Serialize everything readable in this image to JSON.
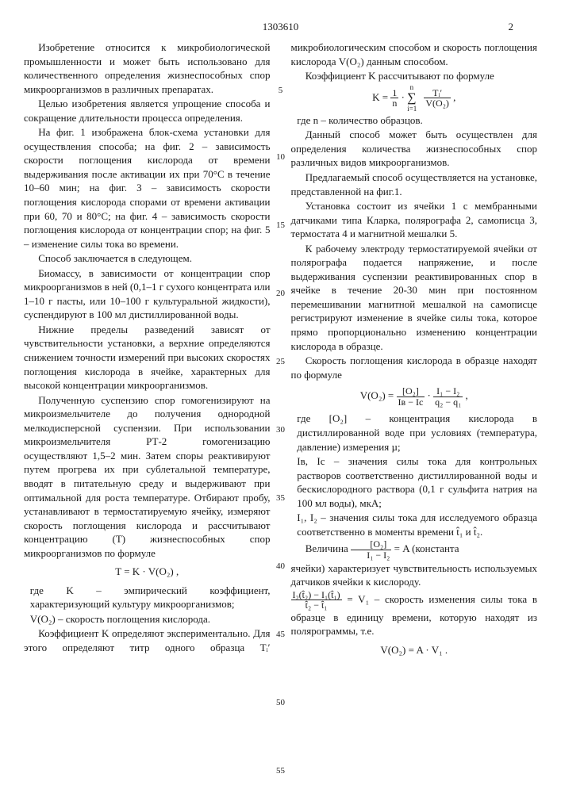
{
  "header": {
    "patent_number": "1303610",
    "page_number": "2"
  },
  "line_numbers": [
    "5",
    "10",
    "15",
    "20",
    "25",
    "30",
    "35",
    "40",
    "45",
    "50",
    "55"
  ],
  "line_number_tops": [
    58,
    142,
    228,
    314,
    400,
    486,
    572,
    658,
    744,
    830,
    916
  ],
  "left": {
    "p1": "Изобретение относится к микробиологической промышленности и может быть использовано для количественного определения жизнеспособных спор микроорганизмов в различных препаратах.",
    "p2": "Целью изобретения является упрощение способа и сокращение длительности процесса определения.",
    "p3": "На фиг. 1 изображена блок-схема установки для осуществления способа; на фиг. 2 – зависимость скорости поглощения кислорода от времени выдерживания после активации их при 70°С в течение 10–60 мин; на фиг. 3 – зависимость скорости поглощения кислорода спорами от времени активации при 60, 70 и 80°С; на фиг. 4 – зависимость скорости поглощения кислорода от концентрации спор; на фиг. 5 – изменение силы тока во времени.",
    "p4": "Способ заключается в следующем.",
    "p5": "Биомассу, в зависимости от концентрации спор микроорганизмов в ней (0,1–1 г сухого концентрата или 1–10 г пасты, или 10–100 г культуральной жидкости), суспендируют в 100 мл дистиллированной воды.",
    "p6": "Нижние пределы разведений зависят от чувствительности установки, а верхние определяются снижением точности измерений при высоких скоростях поглощения кислорода в ячейке, характерных для высокой концентрации микроорганизмов.",
    "p7": "Полученную суспензию спор гомогенизируют на микроизмельчителе до получения однородной мелкодисперсной суспензии. При использовании микроизмельчителя РТ-2 гомогенизацию осуществляют 1,5–2 мин. Затем споры реактивируют путем прогрева их при сублетальной температуре, вводят в питательную среду и выдерживают при оптимальной для роста температуре. Отбирают пробу, устанавливают в термостатируемую ячейку, измеряют скорость поглощения кислорода и рассчитывают концентрацию (T) жизнеспособных спор микроорганизмов по формуле",
    "f1": "T = K · V(O₂) ,",
    "w1a": "где K – эмпирический коэффициент, характеризующий культуру микроорганизмов;",
    "w1b": "V(O₂) – скорость поглощения кислорода."
  },
  "right": {
    "p1": "Коэффициент K определяют экспериментально. Для этого определяют титр одного образца Tᵢ′ микробиологическим способом и скорость поглощения кислорода V(O₂) данным способом.",
    "p2": "Коэффициент K рассчитывают по формуле",
    "f1_left": "K = ",
    "f1_frac1_num": "1",
    "f1_frac1_den": "n",
    "f1_mid": " · ",
    "f1_sum": "∑",
    "f1_sum_top": "n",
    "f1_sum_bot": "i=1",
    "f1_frac2_num": "Tᵢ′",
    "f1_frac2_den": "V(O₂)",
    "f1_tail": " ,",
    "p3": "где n – количество образцов.",
    "p4": "Данный способ может быть осуществлен для определения количества жизнеспособных спор различных видов микроорганизмов.",
    "p5": "Предлагаемый способ осуществляется на установке, представленной на фиг.1.",
    "p6": "Установка состоит из ячейки 1 с мембранными датчиками типа Кларка, полярографа 2, самописца 3, термостата 4 и магнитной мешалки 5.",
    "p7": "К рабочему электроду термостатируемой ячейки от полярографа подается напряжение, и после выдерживания суспензии реактивированных спор в ячейке в течение 20-30 мин при постоянном перемешивании магнитной мешалкой на самописце регистрируют изменение в ячейке силы тока, которое прямо пропорционально изменению концентрации кислорода в образце.",
    "p8": "Скорость поглощения кислорода в образце находят по формуле",
    "f2_lhs": "V(O₂) = ",
    "f2_a_num": "[O₂]",
    "f2_a_den": "Iв − Iс",
    "f2_dot": " · ",
    "f2_b_num": "I₁ − I₂",
    "f2_b_den": "q₂ − q₁",
    "f2_tail": " ,",
    "p9": "где [O₂] – концентрация кислорода в дистиллированной воде при условиях (температура, давление) измерения µ;",
    "p10": "Iв, Iс – значения силы тока для контрольных растворов соответственно дистиллированной воды и бескислородного раствора (0,1 г сульфита натрия на 100 мл воды), мкА;",
    "p11": "I₁, I₂ – значения силы тока для исследуемого образца соответственно в моменты времени t̂₁ и t̂₂.",
    "p12a": "Величина ",
    "f3_num": "[O₂]",
    "f3_den": "I₁ − I₂",
    "p12b": " = A (константа",
    "p12c": "ячейки) характеризует чувствительность используемых датчиков ячейки к кислороду.",
    "f4_num": "I₂(t̂₂) − I₁(t̂₁)",
    "f4_den": "t̂₂ − t̂₁",
    "p13": " = V₁ – скорость изменения силы тока в образце в единицу времени, которую находят из полярограммы, т.е.",
    "f5": "V(O₂) = A · V₁ ."
  }
}
